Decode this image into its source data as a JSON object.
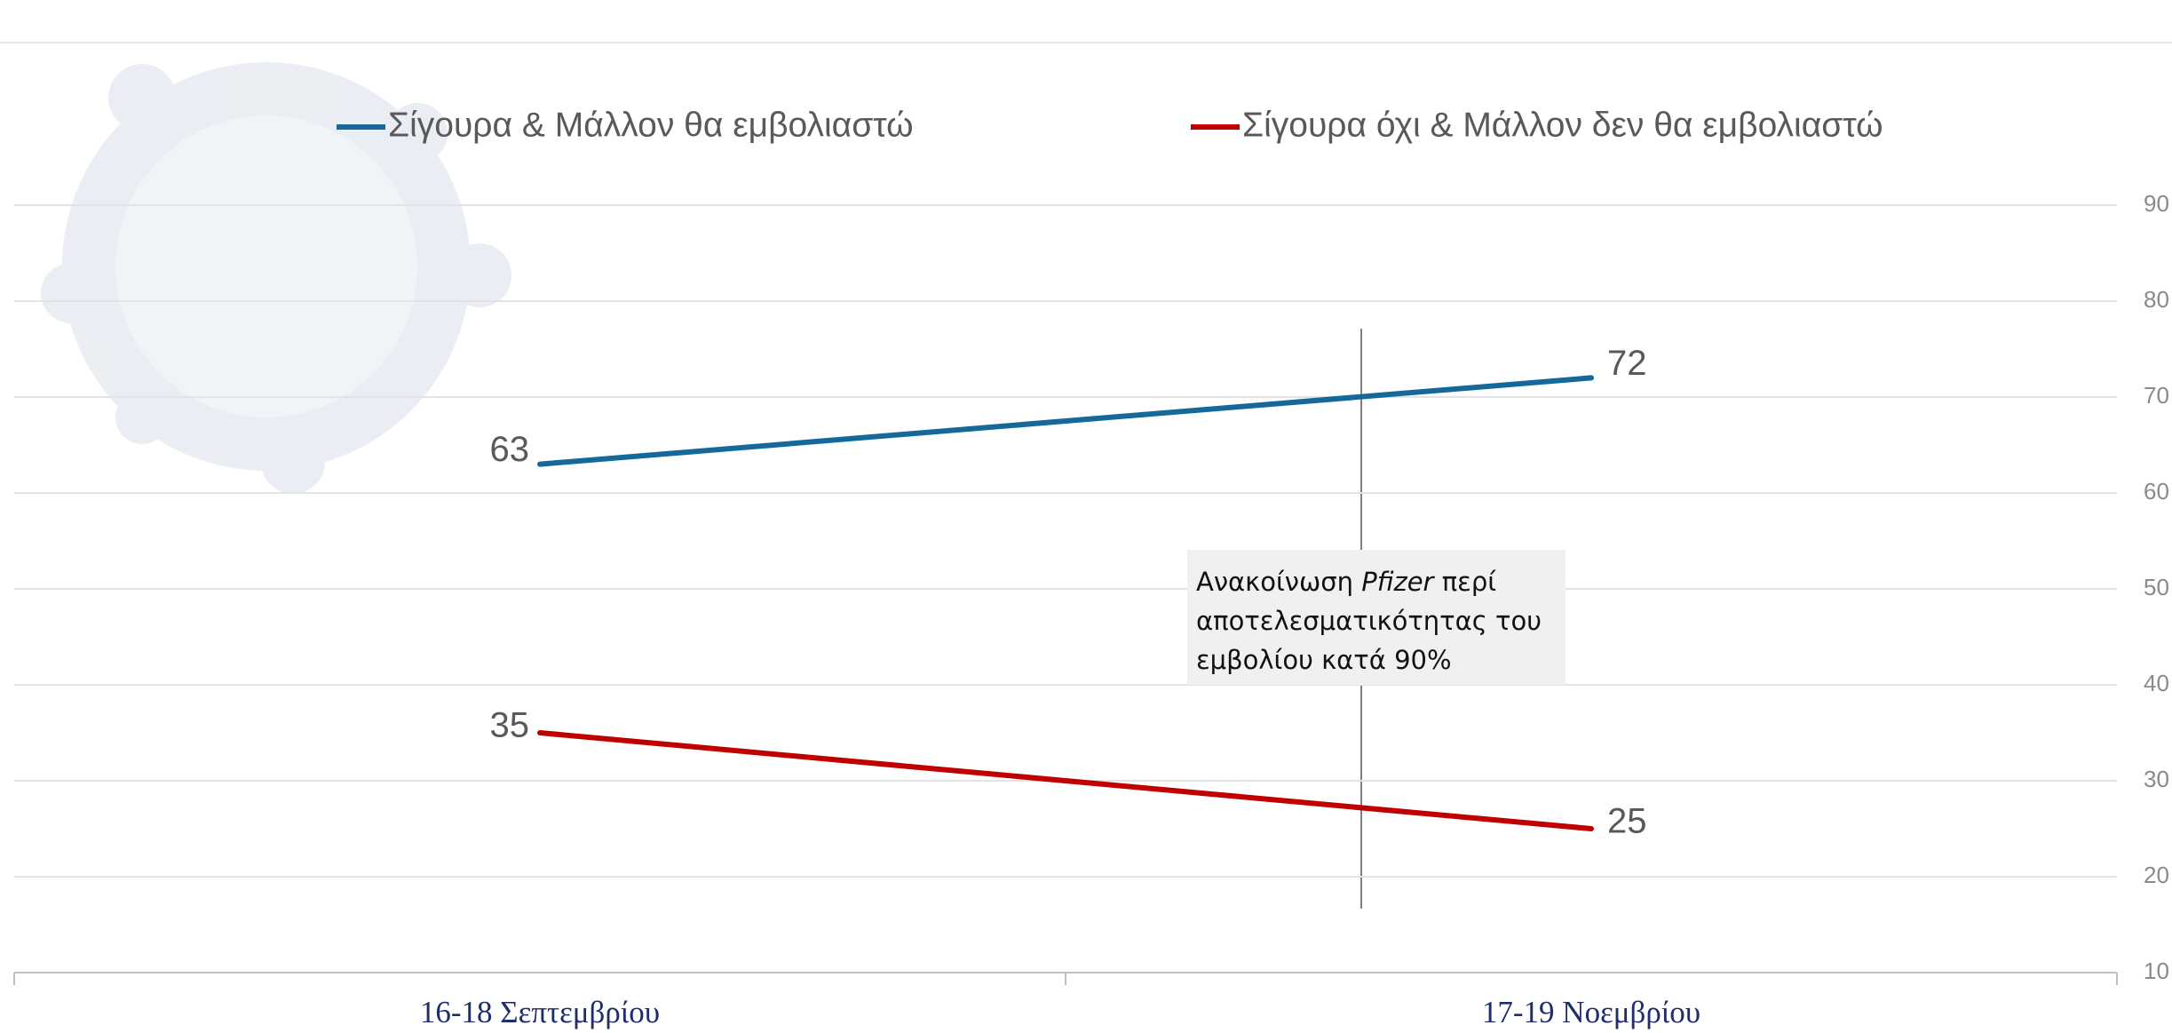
{
  "chart_data": {
    "type": "line",
    "categories": [
      "16-18 Σεπτεμβρίου",
      "17-19 Νοεμβρίου"
    ],
    "series": [
      {
        "name": "Σίγουρα & Μάλλον θα εμβολιαστώ",
        "color": "#13699a",
        "values": [
          63,
          72
        ]
      },
      {
        "name": "Σίγουρα όχι & Μάλλον δεν θα εμβολιαστώ",
        "color": "#c00000",
        "values": [
          35,
          25
        ]
      }
    ],
    "ylim": [
      10,
      90
    ],
    "yticks": [
      10,
      20,
      30,
      40,
      50,
      60,
      70,
      80,
      90
    ],
    "grid": true,
    "y_axis_side": "right",
    "legend": "top",
    "annotation": {
      "before": "Ανακοίνωση ",
      "emphasis": "Pfizer",
      "after": " περί αποτελεσματικότητας του εμβολίου κατά 90%"
    }
  }
}
